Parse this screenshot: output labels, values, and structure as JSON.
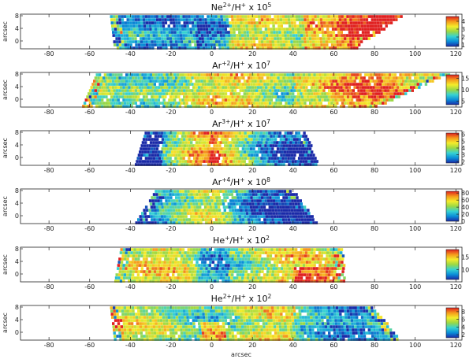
{
  "chart_data": {
    "type": "heatmap",
    "colormap": [
      "#1a2aa8",
      "#0a8ed8",
      "#36d2d2",
      "#9bd844",
      "#f4ec2a",
      "#f59a1c",
      "#e02020"
    ],
    "x_axis": {
      "label": "arcsec",
      "ticks": [
        "-80",
        "-60",
        "-40",
        "-20",
        "0",
        "20",
        "40",
        "60",
        "80",
        "100",
        "120"
      ],
      "range": [
        -94,
        123
      ]
    },
    "y_axis": {
      "label": "arcsec",
      "ticks": [
        "0",
        "4",
        "8"
      ],
      "range": [
        -2.5,
        8.5
      ]
    },
    "panels": [
      {
        "title_parts": [
          {
            "t": "Ne"
          },
          {
            "t": "2+",
            "sup": true
          },
          {
            "t": "/H"
          },
          {
            "t": "+",
            "sup": true
          },
          {
            "t": " x 10"
          },
          {
            "t": "5",
            "sup": true
          }
        ],
        "colorbar_ticks": [
          {
            "label": "1",
            "value": 1
          },
          {
            "label": "2",
            "value": 2
          },
          {
            "label": "3",
            "value": 3
          },
          {
            "label": "4",
            "value": 4
          }
        ],
        "colorbar_range": [
          0.8,
          4.6
        ],
        "extent": {
          "top": [
            -50,
            93
          ],
          "bottom": [
            -48,
            70
          ]
        }
      },
      {
        "title_parts": [
          {
            "t": "Ar"
          },
          {
            "t": "+2",
            "sup": true
          },
          {
            "t": "/H"
          },
          {
            "t": "+",
            "sup": true
          },
          {
            "t": " x 10"
          },
          {
            "t": "7",
            "sup": true
          }
        ],
        "colorbar_ticks": [
          {
            "label": "5",
            "value": 5
          },
          {
            "label": "10",
            "value": 10
          },
          {
            "label": "15",
            "value": 15
          }
        ],
        "colorbar_range": [
          3.5,
          16.5
        ],
        "extent": {
          "top": [
            -57,
            116
          ],
          "bottom": [
            -64,
            80
          ]
        }
      },
      {
        "title_parts": [
          {
            "t": "Ar"
          },
          {
            "t": "3+",
            "sup": true
          },
          {
            "t": "/H"
          },
          {
            "t": "+",
            "sup": true
          },
          {
            "t": " x 10"
          },
          {
            "t": "7",
            "sup": true
          }
        ],
        "colorbar_ticks": [
          {
            "label": "2",
            "value": 2
          },
          {
            "label": "3",
            "value": 3
          },
          {
            "label": "4",
            "value": 4
          },
          {
            "label": "5",
            "value": 5
          },
          {
            "label": "6",
            "value": 6
          }
        ],
        "colorbar_range": [
          1.8,
          6.2
        ],
        "extent": {
          "top": [
            -33,
            46
          ],
          "bottom": [
            -38,
            52
          ]
        }
      },
      {
        "title_parts": [
          {
            "t": "Ar"
          },
          {
            "t": "+4",
            "sup": true
          },
          {
            "t": "/H"
          },
          {
            "t": "+",
            "sup": true
          },
          {
            "t": " x 10"
          },
          {
            "t": "8",
            "sup": true
          }
        ],
        "colorbar_ticks": [
          {
            "label": "0",
            "value": 0
          },
          {
            "label": "20",
            "value": 20
          },
          {
            "label": "40",
            "value": 40
          },
          {
            "label": "60",
            "value": 60
          },
          {
            "label": "80",
            "value": 80
          }
        ],
        "colorbar_range": [
          0,
          85
        ],
        "extent": {
          "top": [
            -28,
            40
          ],
          "bottom": [
            -38,
            52
          ]
        }
      },
      {
        "title_parts": [
          {
            "t": "He"
          },
          {
            "t": "+",
            "sup": true
          },
          {
            "t": "/H"
          },
          {
            "t": "+",
            "sup": true
          },
          {
            "t": " x 10"
          },
          {
            "t": "2",
            "sup": true
          }
        ],
        "colorbar_ticks": [
          {
            "label": "10",
            "value": 10
          },
          {
            "label": "15",
            "value": 15
          }
        ],
        "colorbar_range": [
          6,
          18
        ],
        "extent": {
          "top": [
            -45,
            64
          ],
          "bottom": [
            -48,
            65
          ]
        }
      },
      {
        "title_parts": [
          {
            "t": "He"
          },
          {
            "t": "2+",
            "sup": true
          },
          {
            "t": "/H"
          },
          {
            "t": "+",
            "sup": true
          },
          {
            "t": " x 10"
          },
          {
            "t": "2",
            "sup": true
          }
        ],
        "colorbar_ticks": [
          {
            "label": "2",
            "value": 2
          },
          {
            "label": "4",
            "value": 4
          },
          {
            "label": "6",
            "value": 6
          },
          {
            "label": "8",
            "value": 8
          }
        ],
        "colorbar_range": [
          1.2,
          9
        ],
        "extent": {
          "top": [
            -50,
            80
          ],
          "bottom": [
            -48,
            92
          ]
        }
      }
    ]
  }
}
